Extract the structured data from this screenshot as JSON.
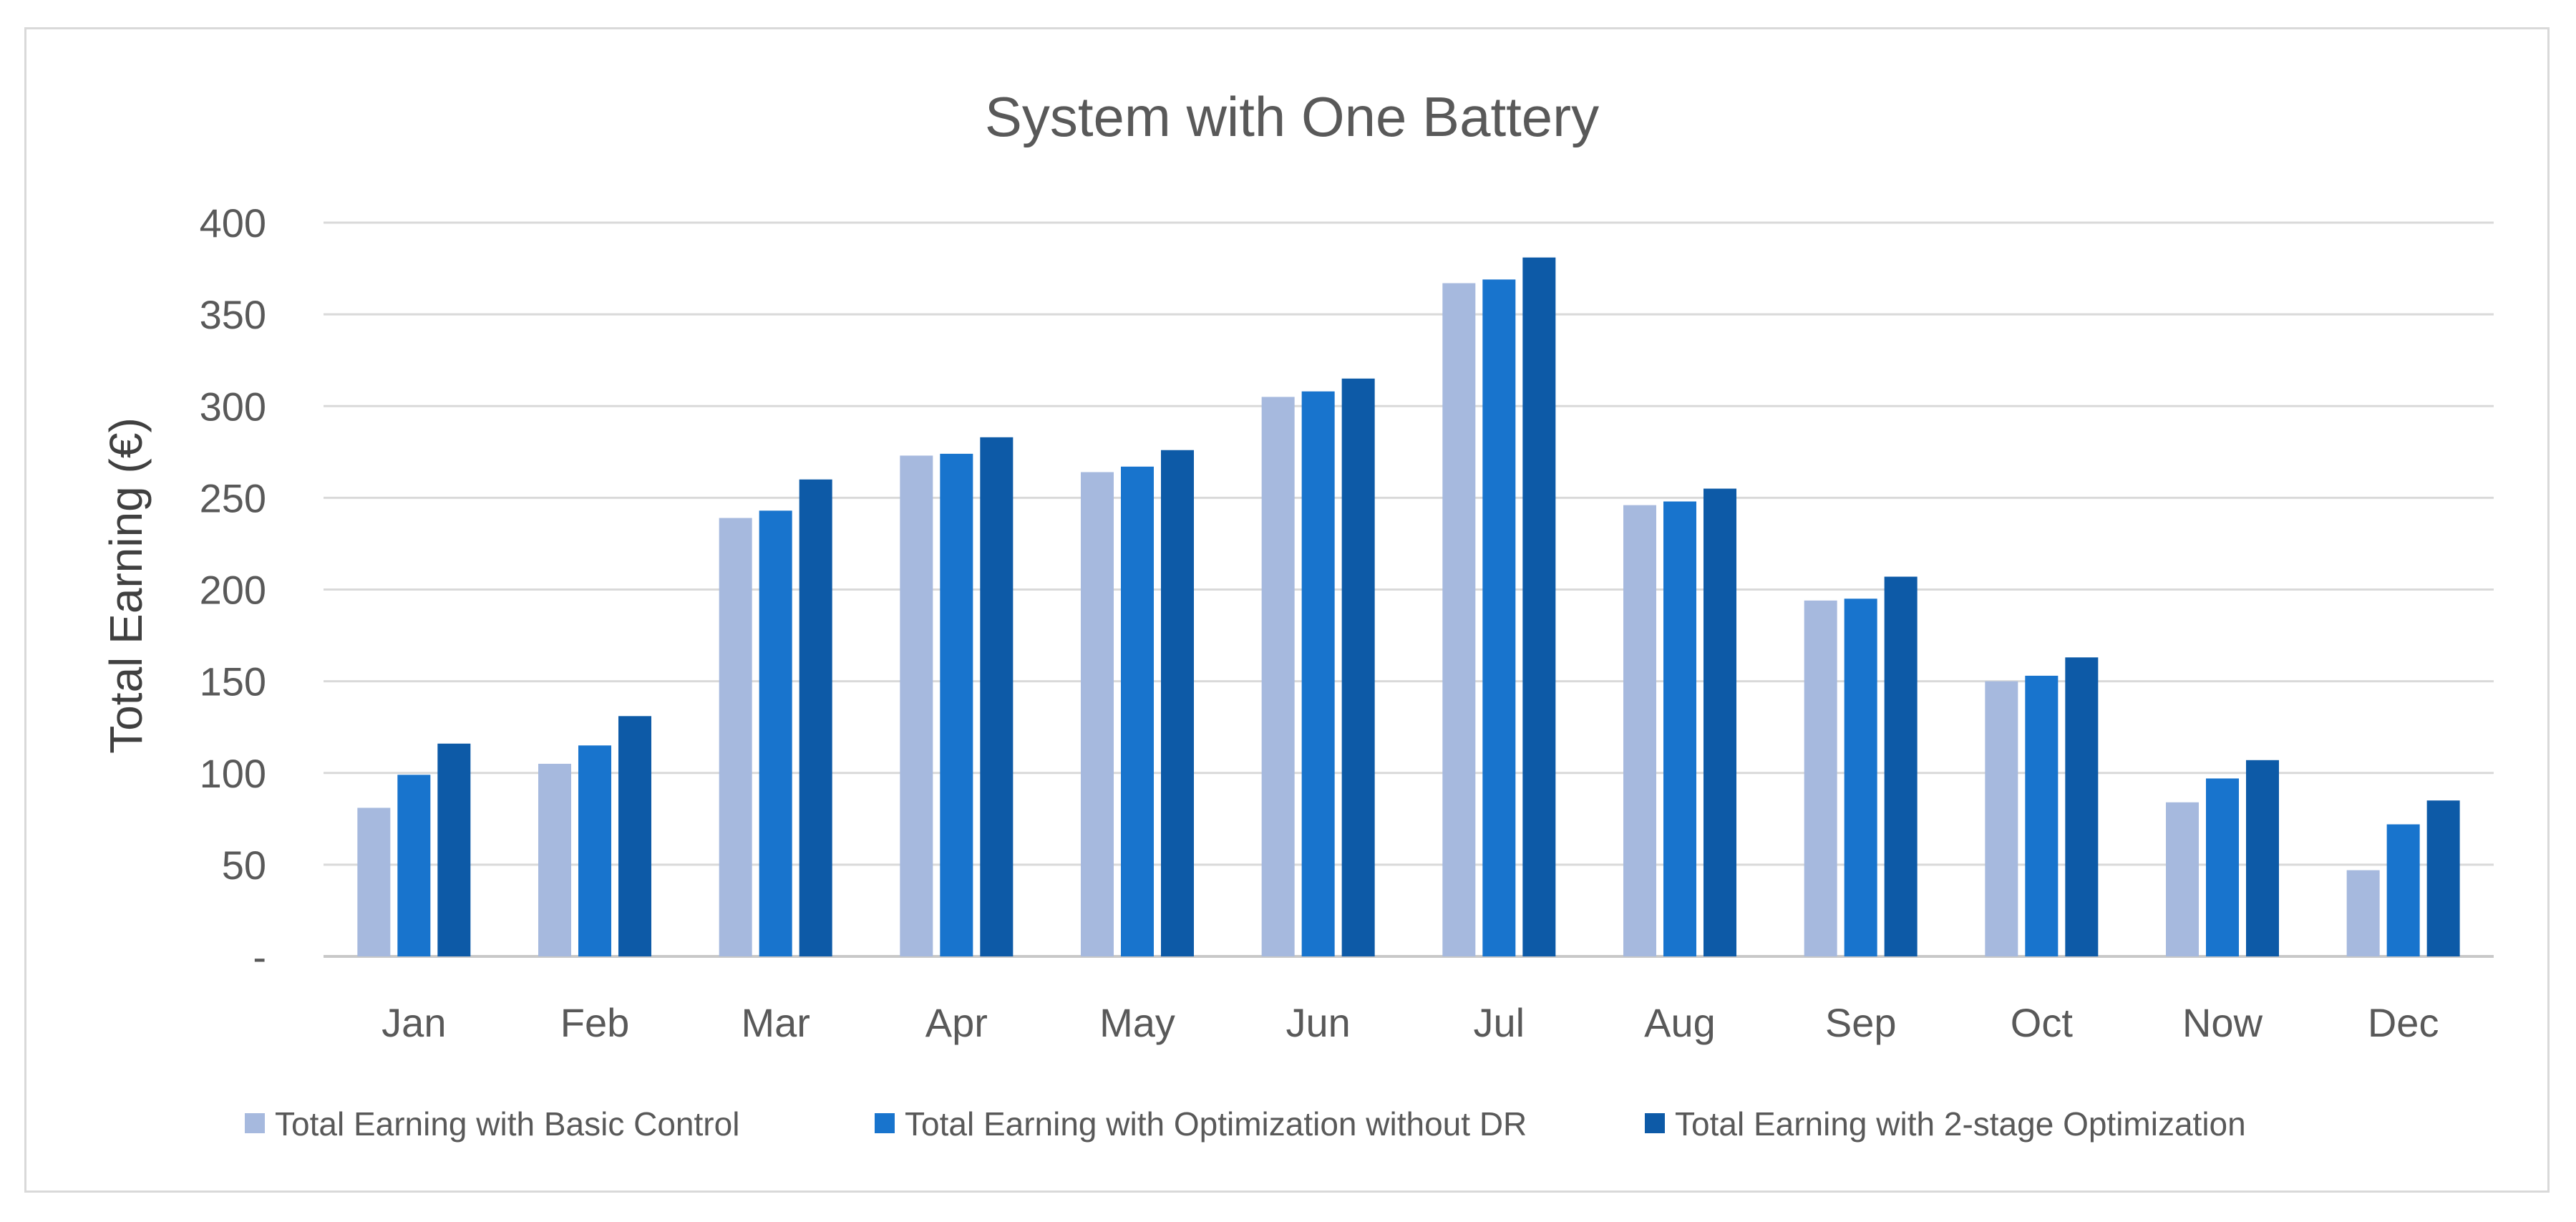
{
  "chart_data": {
    "type": "bar",
    "title": "System with One Battery",
    "xlabel": "",
    "ylabel": "Total Earning (€)",
    "ylim": [
      0,
      400
    ],
    "yticks": [
      0,
      50,
      100,
      150,
      200,
      250,
      300,
      350,
      400
    ],
    "ytick_labels": [
      "-",
      "50",
      "100",
      "150",
      "200",
      "250",
      "300",
      "350",
      "400"
    ],
    "grid": true,
    "legend_position": "bottom",
    "categories": [
      "Jan",
      "Feb",
      "Mar",
      "Apr",
      "May",
      "Jun",
      "Jul",
      "Aug",
      "Sep",
      "Oct",
      "Now",
      "Dec"
    ],
    "series": [
      {
        "name": "Total Earning with Basic Control",
        "color": "#a6b9de",
        "values": [
          81,
          105,
          239,
          273,
          264,
          305,
          367,
          246,
          194,
          150,
          84,
          47
        ]
      },
      {
        "name": "Total Earning with Optimization without DR",
        "color": "#1874cd",
        "values": [
          99,
          115,
          243,
          274,
          267,
          308,
          369,
          248,
          195,
          153,
          97,
          72
        ]
      },
      {
        "name": "Total Earning with 2-stage Optimization",
        "color": "#0d5aa7",
        "values": [
          116,
          131,
          260,
          283,
          276,
          315,
          381,
          255,
          207,
          163,
          107,
          85
        ]
      }
    ]
  }
}
